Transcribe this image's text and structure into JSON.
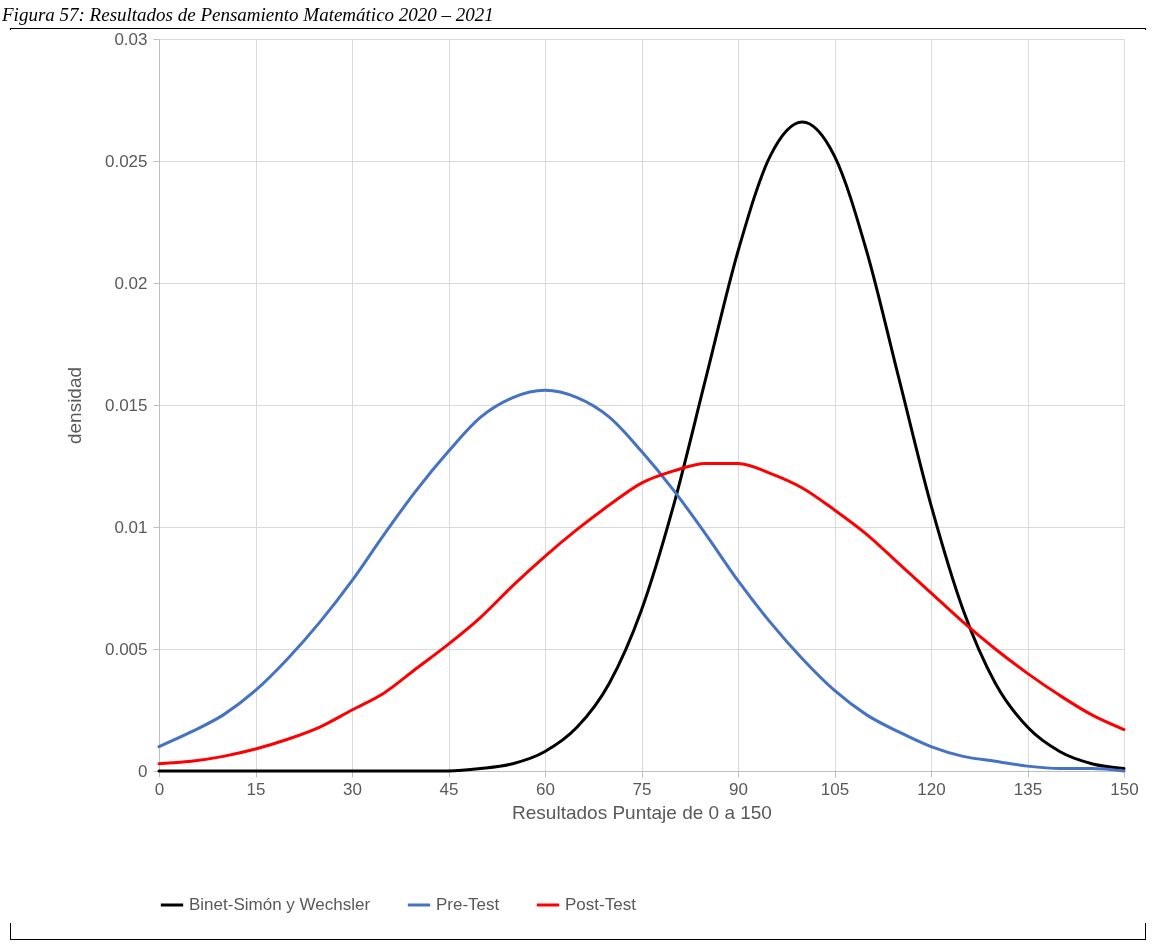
{
  "chart_data": {
    "type": "line",
    "title": "Figura 57: Resultados de Pensamiento Matemático 2020 – 2021",
    "xlabel": "Resultados Puntaje de 0 a 150",
    "ylabel": "densidad",
    "x": [
      0,
      5,
      10,
      15,
      20,
      25,
      30,
      35,
      40,
      45,
      50,
      55,
      60,
      65,
      70,
      75,
      80,
      85,
      90,
      95,
      100,
      105,
      110,
      115,
      120,
      125,
      130,
      135,
      140,
      145,
      150
    ],
    "series": [
      {
        "name": "Binet-Simón y Wechsler",
        "color": "#000000",
        "values": [
          0,
          0,
          0,
          0,
          0,
          0,
          0,
          0,
          0,
          0,
          0.0001,
          0.0003,
          0.0008,
          0.0018,
          0.0036,
          0.0066,
          0.0109,
          0.0161,
          0.0213,
          0.0252,
          0.0266,
          0.0252,
          0.0213,
          0.0161,
          0.0109,
          0.0066,
          0.0036,
          0.0018,
          0.0008,
          0.0003,
          0.0001
        ]
      },
      {
        "name": "Pre-Test",
        "color": "#4472c4",
        "values": [
          0.001,
          0.0016,
          0.0023,
          0.0033,
          0.0046,
          0.0061,
          0.0078,
          0.0097,
          0.0115,
          0.0131,
          0.0145,
          0.0153,
          0.0156,
          0.0153,
          0.0145,
          0.0131,
          0.0115,
          0.0097,
          0.0078,
          0.0061,
          0.0046,
          0.0033,
          0.0023,
          0.0016,
          0.001,
          0.0006,
          0.0004,
          0.0002,
          0.0001,
          0.0001,
          0
        ]
      },
      {
        "name": "Post-Test",
        "color": "#ff0000",
        "values": [
          0.0003,
          0.0004,
          0.0006,
          0.0009,
          0.0013,
          0.0018,
          0.0025,
          0.0032,
          0.0042,
          0.0052,
          0.0063,
          0.0076,
          0.0088,
          0.0099,
          0.0109,
          0.0118,
          0.0123,
          0.0126,
          0.0126,
          0.0122,
          0.0116,
          0.0107,
          0.0097,
          0.0085,
          0.0073,
          0.0061,
          0.005,
          0.004,
          0.0031,
          0.0023,
          0.0017
        ]
      }
    ],
    "xlim": [
      0,
      150
    ],
    "xticks": [
      0,
      15,
      30,
      45,
      60,
      75,
      90,
      105,
      120,
      135,
      150
    ],
    "ylim": [
      0,
      0.03
    ],
    "yticks": [
      0,
      0.005,
      0.01,
      0.015,
      0.02,
      0.025,
      0.03
    ],
    "grid": true,
    "legend": "bottom",
    "marker": "none",
    "line_style": "solid"
  }
}
